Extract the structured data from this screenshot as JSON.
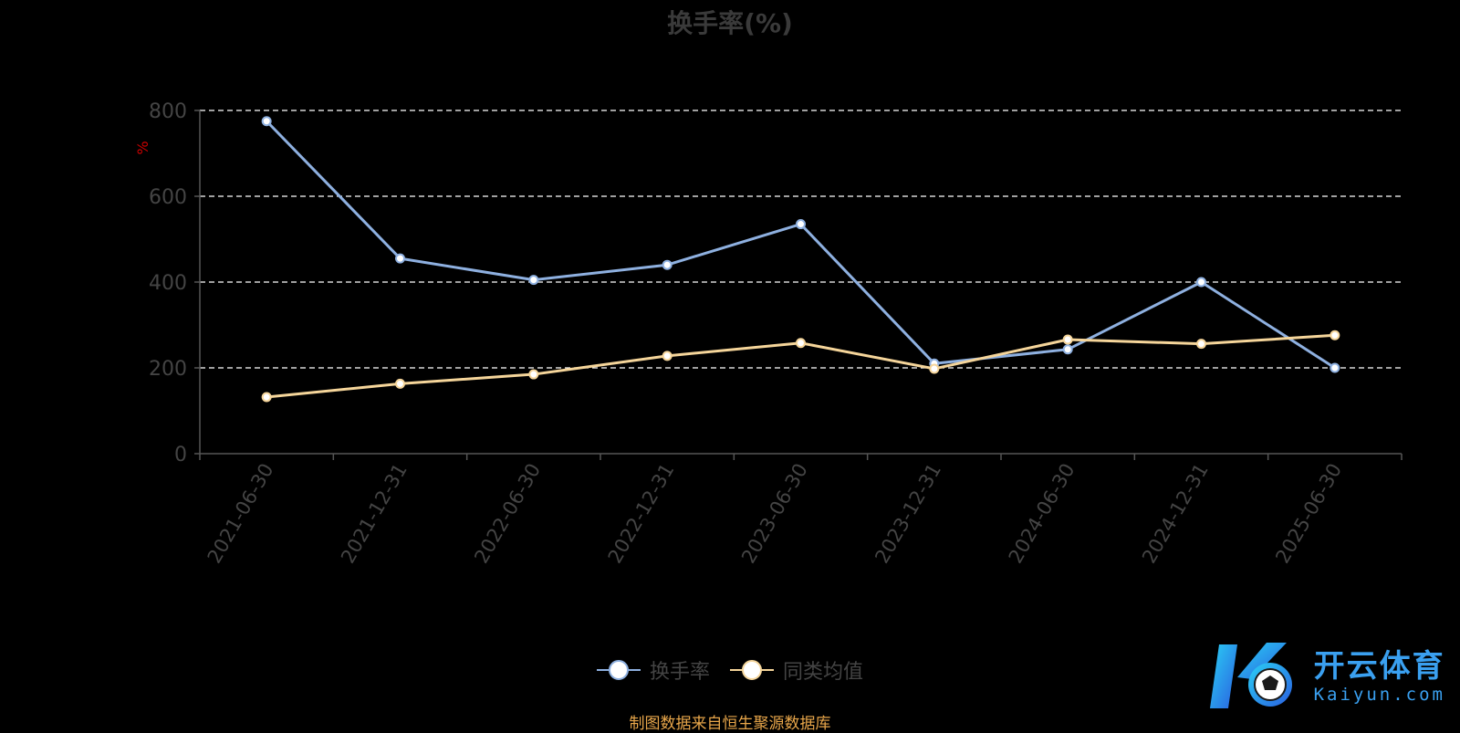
{
  "chart_data": {
    "type": "line",
    "title": "换手率(%)",
    "ylabel": "%",
    "ylim": [
      0,
      800
    ],
    "yticks": [
      0,
      200,
      400,
      600,
      800
    ],
    "grid": true,
    "legend_position": "bottom-center",
    "categories": [
      "2021-06-30",
      "2021-12-31",
      "2022-06-30",
      "2022-12-31",
      "2023-06-30",
      "2023-12-31",
      "2024-06-30",
      "2024-12-31",
      "2025-06-30"
    ],
    "series": [
      {
        "name": "换手率",
        "color": "#8eb0e0",
        "values": [
          775,
          455,
          405,
          440,
          535,
          210,
          243,
          400,
          200
        ]
      },
      {
        "name": "同类均值",
        "color": "#f5d59a",
        "values": [
          132,
          163,
          185,
          228,
          258,
          198,
          266,
          256,
          276
        ]
      }
    ]
  },
  "source_note": "制图数据来自恒生聚源数据库",
  "logo": {
    "cn": "开云体育",
    "en": "Kaiyun.com"
  },
  "colors": {
    "background": "#000000",
    "gridline": "#ffffff",
    "axis": "#555555",
    "tick_label": "#444444",
    "ylabel": "#cc0000",
    "logo": "#3aa0f0",
    "source_note": "#e8a64a"
  }
}
